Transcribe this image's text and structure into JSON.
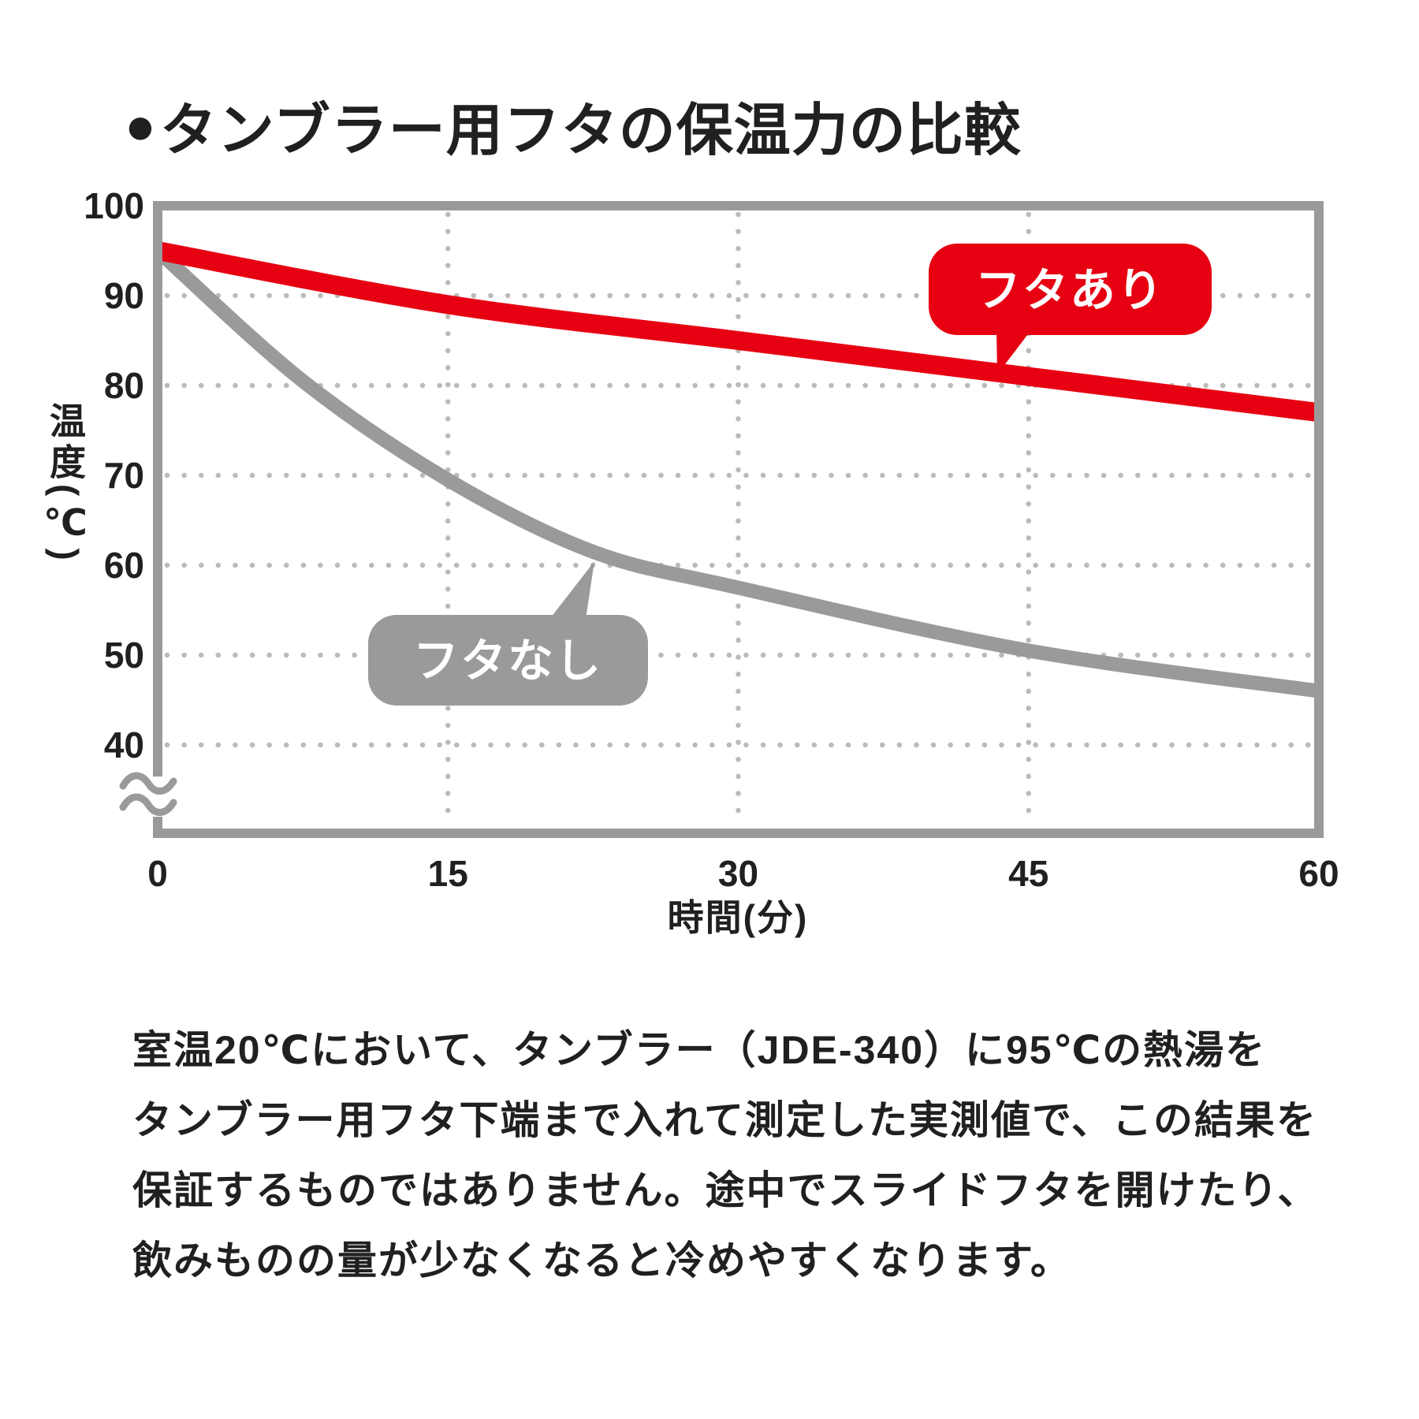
{
  "title": {
    "bullet": "●",
    "text": "タンブラー用フタの保温力の比較"
  },
  "colors": {
    "red": "#e60012",
    "gray": "#9a9a9a",
    "grid_dot": "#bdbab7",
    "text": "#221f1f",
    "white": "#ffffff"
  },
  "chart_data": {
    "type": "line",
    "title": "タンブラー用フタの保温力の比較",
    "xlabel": "時間(分)",
    "ylabel": "温度(℃)",
    "x_ticks": [
      0,
      15,
      30,
      45,
      60
    ],
    "y_ticks": [
      100,
      90,
      80,
      70,
      60,
      50,
      40
    ],
    "xlim": [
      0,
      60
    ],
    "ylim": [
      40,
      100
    ],
    "y_axis_break": true,
    "grid": "dotted",
    "legend_position": "callout-bubbles",
    "series": [
      {
        "name": "フタあり",
        "color": "#e60012",
        "x": [
          0,
          15,
          30,
          45,
          60
        ],
        "values": [
          95,
          89,
          85,
          81,
          77
        ]
      },
      {
        "name": "フタなし",
        "color": "#9a9a9a",
        "x": [
          0,
          7.5,
          15,
          22.5,
          30,
          45,
          60
        ],
        "values": [
          95,
          80.5,
          69.5,
          61.5,
          57.5,
          50.5,
          46
        ]
      }
    ]
  },
  "callouts": {
    "with_lid": "フタあり",
    "without_lid": "フタなし"
  },
  "footnote": {
    "lines": [
      "室温20℃において、タンブラー（JDE-340）に95℃の熱湯を",
      "タンブラー用フタ下端まで入れて測定した実測値で、この結果を",
      "保証するものではありません。途中でスライドフタを開けたり、",
      "飲みものの量が少なくなると冷めやすくなります。"
    ]
  }
}
